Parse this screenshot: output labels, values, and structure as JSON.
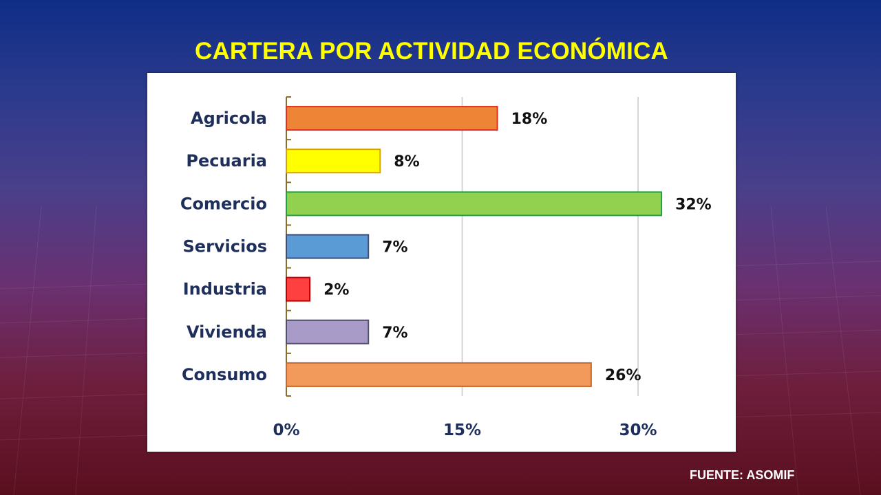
{
  "slide": {
    "title": "CARTERA POR ACTIVIDAD ECONÓMICA",
    "source": "FUENTE: ASOMIF"
  },
  "chart_data": {
    "type": "bar",
    "orientation": "horizontal",
    "categories": [
      "Agricola",
      "Pecuaria",
      "Comercio",
      "Servicios",
      "Industria",
      "Vivienda",
      "Consumo"
    ],
    "values": [
      18,
      8,
      32,
      7,
      2,
      7,
      26
    ],
    "value_labels": [
      "18%",
      "8%",
      "32%",
      "7%",
      "2%",
      "7%",
      "26%"
    ],
    "colors": [
      "#ee8435",
      "#ffff00",
      "#92d050",
      "#5b9bd5",
      "#ff4040",
      "#a99bc8",
      "#f29a5c"
    ],
    "border_colors": [
      "#e0301e",
      "#d9a300",
      "#1fa33a",
      "#3a4e7a",
      "#c00000",
      "#4f4f6f",
      "#c96a2a"
    ],
    "x_ticks": [
      0,
      15,
      30
    ],
    "x_tick_labels": [
      "0%",
      "15%",
      "30%"
    ],
    "xlim": [
      0,
      36
    ],
    "grid": true
  }
}
